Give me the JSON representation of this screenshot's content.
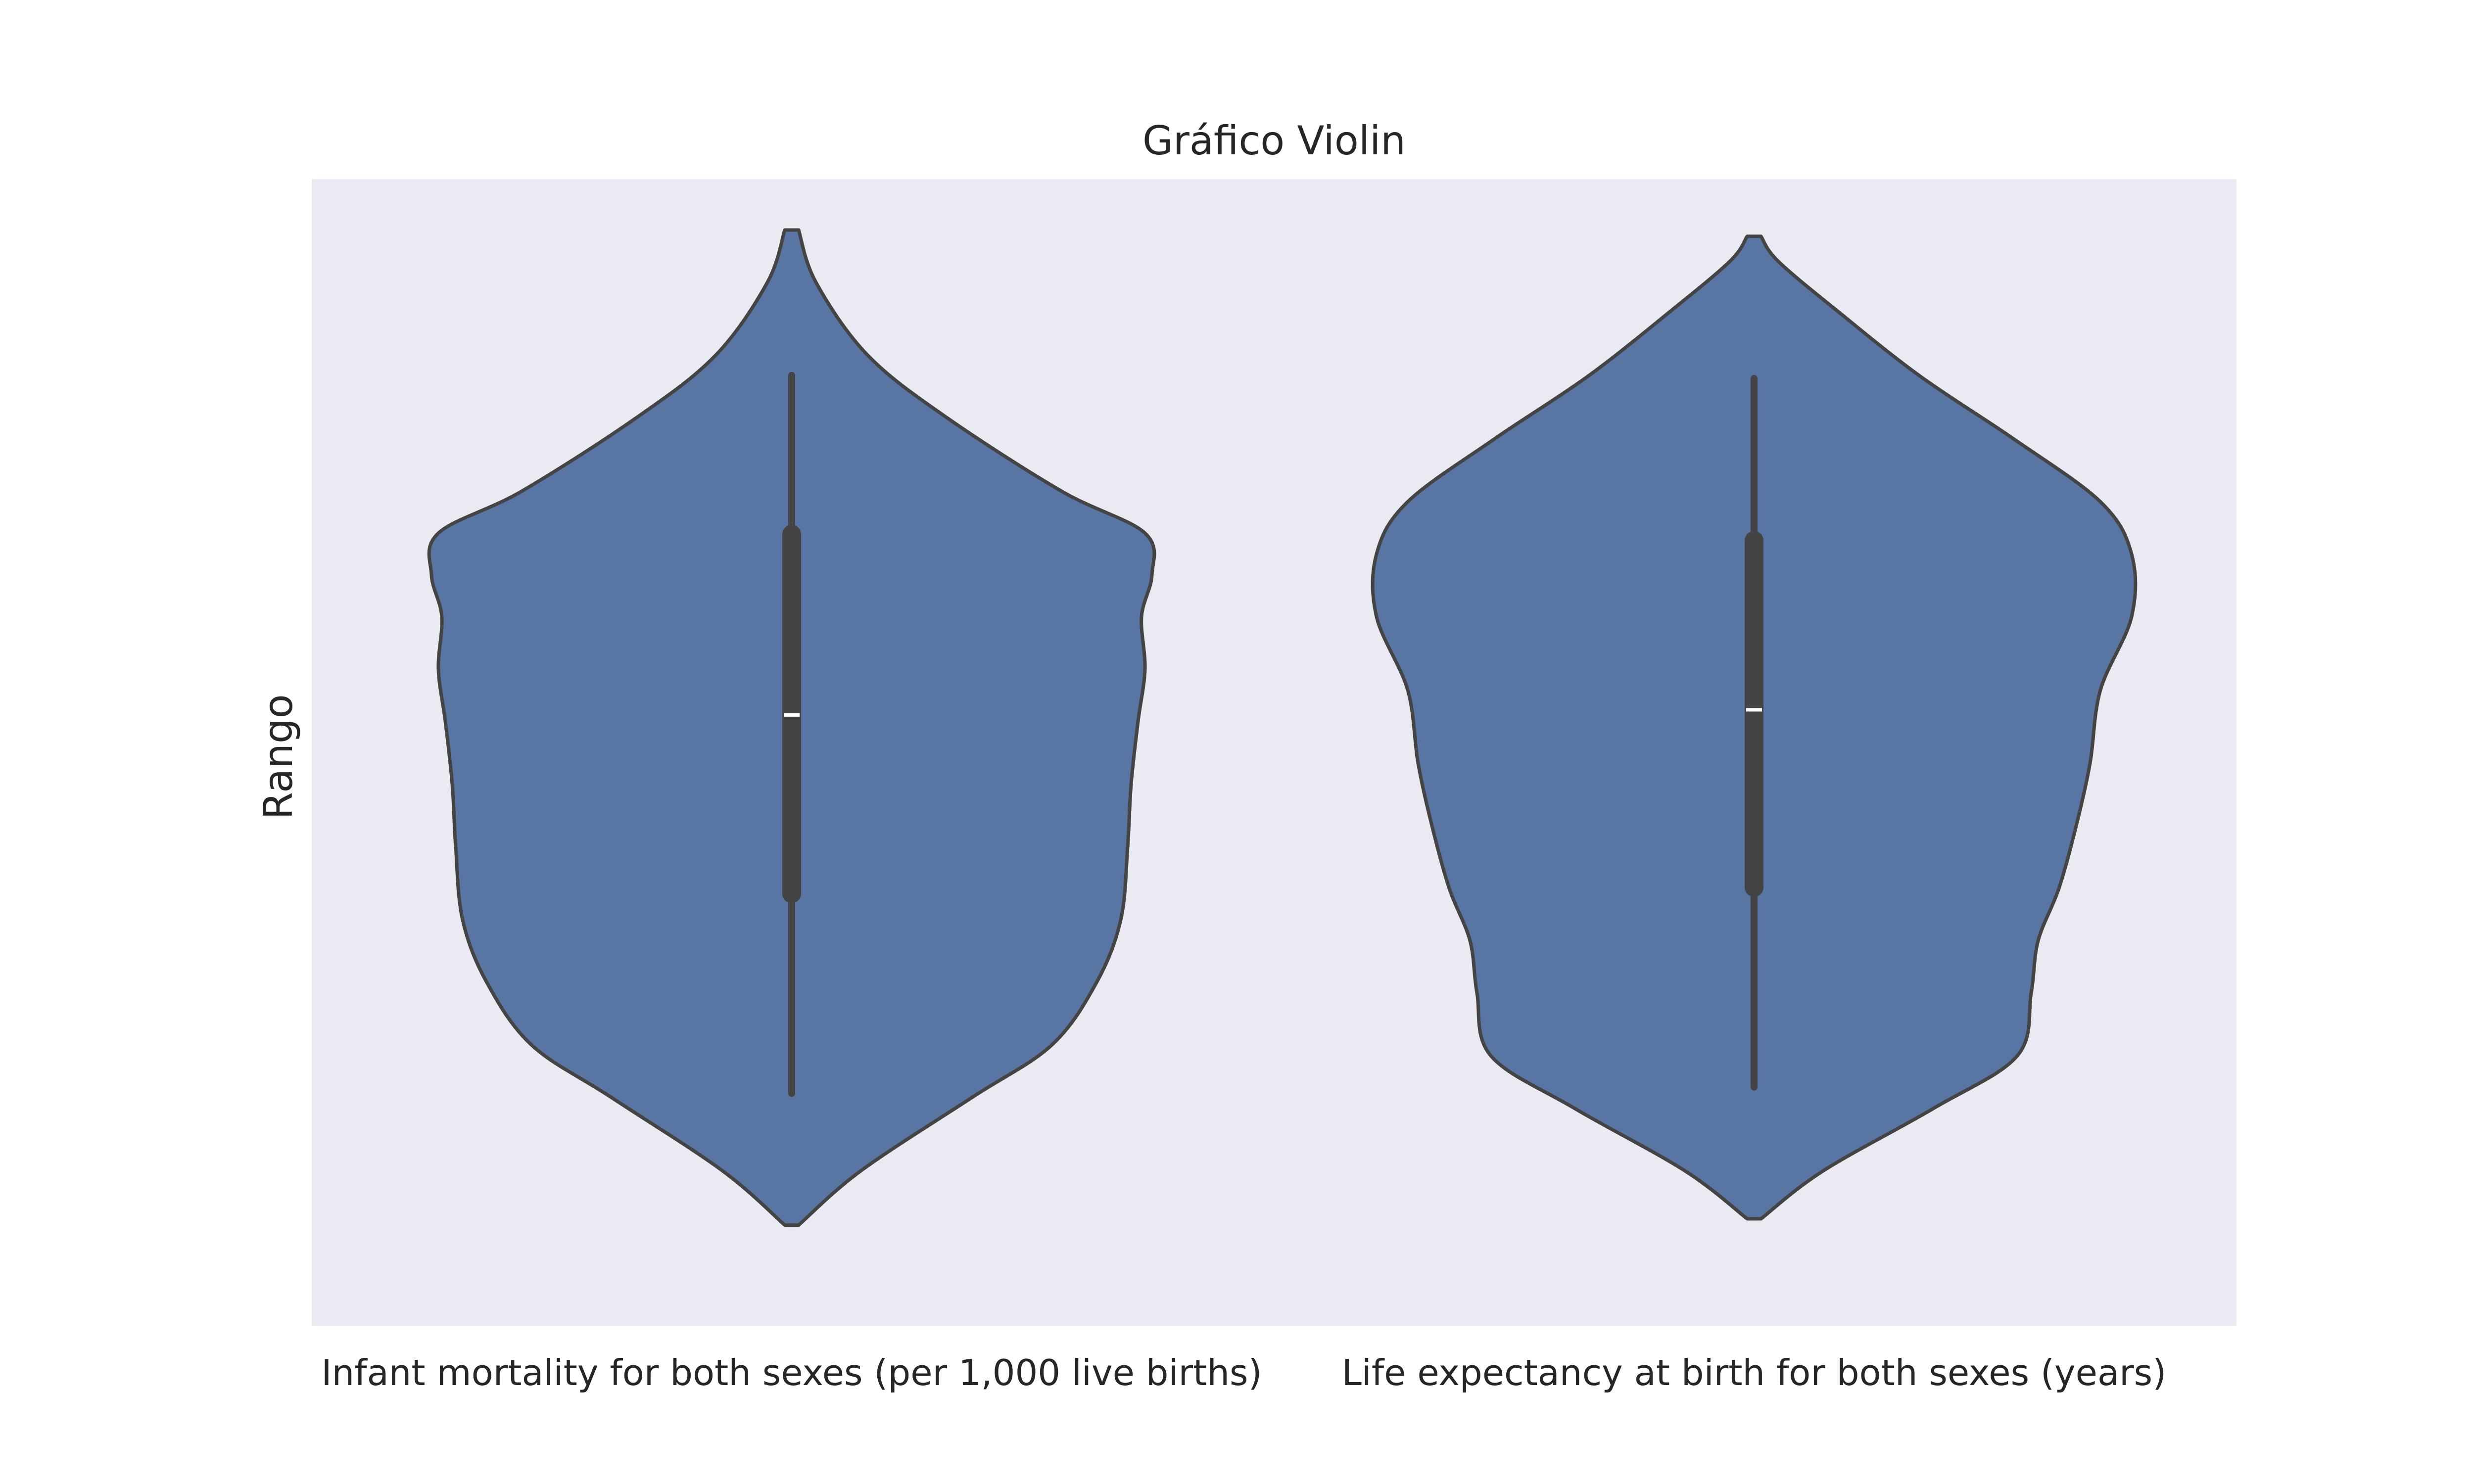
{
  "chart_data": {
    "type": "violin",
    "title": "Gráfico Violin",
    "xlabel": "",
    "ylabel": "Rango",
    "y_ticks_shown": false,
    "grid": false,
    "legend": "none",
    "colors": {
      "background": "#EAEAF2",
      "violin_fill": "#5975A4",
      "violin_edge": "#444444",
      "box": "#444444",
      "median": "#FFFFFF",
      "text": "#262626"
    },
    "categories": [
      "Infant mortality for both sexes (per 1,000 live births)",
      "Life expectancy at birth for both sexes (years)"
    ],
    "violins": [
      {
        "category": "Infant mortality for both sexes (per 1,000 live births)",
        "q1": 0.365,
        "median": 0.536,
        "q3": 0.709,
        "whisker_low": 0.174,
        "whisker_high": 0.861,
        "min": 0.048,
        "max": 1.0,
        "density": [
          {
            "v": 0.048,
            "w": 0.02
          },
          {
            "v": 0.1,
            "w": 0.2
          },
          {
            "v": 0.17,
            "w": 0.52
          },
          {
            "v": 0.22,
            "w": 0.75
          },
          {
            "v": 0.28,
            "w": 0.88
          },
          {
            "v": 0.34,
            "w": 0.95
          },
          {
            "v": 0.41,
            "w": 0.97
          },
          {
            "v": 0.47,
            "w": 0.98
          },
          {
            "v": 0.53,
            "w": 1.0
          },
          {
            "v": 0.58,
            "w": 1.02
          },
          {
            "v": 0.63,
            "w": 1.01
          },
          {
            "v": 0.67,
            "w": 1.04
          },
          {
            "v": 0.71,
            "w": 1.02
          },
          {
            "v": 0.75,
            "w": 0.78
          },
          {
            "v": 0.82,
            "w": 0.45
          },
          {
            "v": 0.88,
            "w": 0.22
          },
          {
            "v": 0.95,
            "w": 0.07
          },
          {
            "v": 1.0,
            "w": 0.02
          }
        ]
      },
      {
        "category": "Life expectancy at birth for both sexes (years)",
        "q1": 0.371,
        "median": 0.541,
        "q3": 0.703,
        "whisker_low": 0.18,
        "whisker_high": 0.858,
        "min": 0.054,
        "max": 0.994,
        "density": [
          {
            "v": 0.054,
            "w": 0.02
          },
          {
            "v": 0.1,
            "w": 0.2
          },
          {
            "v": 0.16,
            "w": 0.52
          },
          {
            "v": 0.21,
            "w": 0.76
          },
          {
            "v": 0.27,
            "w": 0.8
          },
          {
            "v": 0.32,
            "w": 0.82
          },
          {
            "v": 0.37,
            "w": 0.88
          },
          {
            "v": 0.43,
            "w": 0.93
          },
          {
            "v": 0.49,
            "w": 0.97
          },
          {
            "v": 0.56,
            "w": 1.0
          },
          {
            "v": 0.63,
            "w": 1.09
          },
          {
            "v": 0.69,
            "w": 1.09
          },
          {
            "v": 0.74,
            "w": 1.0
          },
          {
            "v": 0.8,
            "w": 0.75
          },
          {
            "v": 0.86,
            "w": 0.48
          },
          {
            "v": 0.92,
            "w": 0.25
          },
          {
            "v": 0.97,
            "w": 0.07
          },
          {
            "v": 0.994,
            "w": 0.02
          }
        ]
      }
    ]
  }
}
